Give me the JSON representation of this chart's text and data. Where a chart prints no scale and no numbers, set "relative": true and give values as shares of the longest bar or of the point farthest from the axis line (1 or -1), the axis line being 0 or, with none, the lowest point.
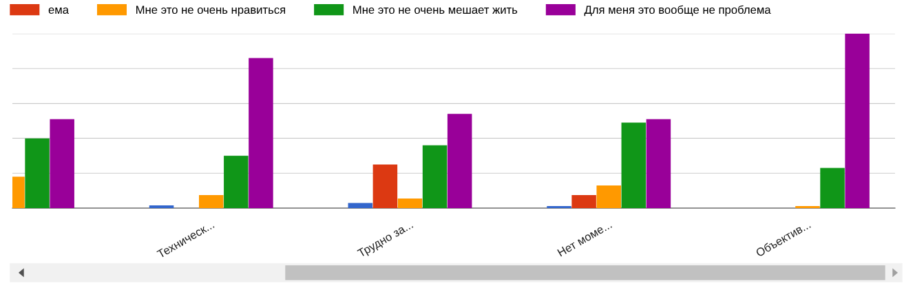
{
  "chart_data": {
    "type": "bar",
    "relative": true,
    "grid": "y",
    "legend": "top",
    "categories": [
      null,
      "Техническ...",
      "Трудно за...",
      "Нет моме...",
      "Объектив..."
    ],
    "series": [
      {
        "color": "#3366cc",
        "values": [
          null,
          0.016,
          0.03,
          0.012,
          0
        ]
      },
      {
        "name": "ема",
        "color": "#dc3912",
        "values": [
          null,
          0,
          0.25,
          0.075,
          0
        ]
      },
      {
        "name": "Мне это не очень нравиться",
        "color": "#ff9900",
        "values": [
          0.18,
          0.075,
          0.055,
          0.13,
          0.012
        ]
      },
      {
        "name": "Мне это не очень мешает жить",
        "color": "#109618",
        "values": [
          0.4,
          0.3,
          0.36,
          0.49,
          0.23
        ]
      },
      {
        "name": "Для меня это вообще не проблема",
        "color": "#990099",
        "values": [
          0.51,
          0.86,
          0.54,
          0.51,
          1
        ]
      }
    ]
  }
}
